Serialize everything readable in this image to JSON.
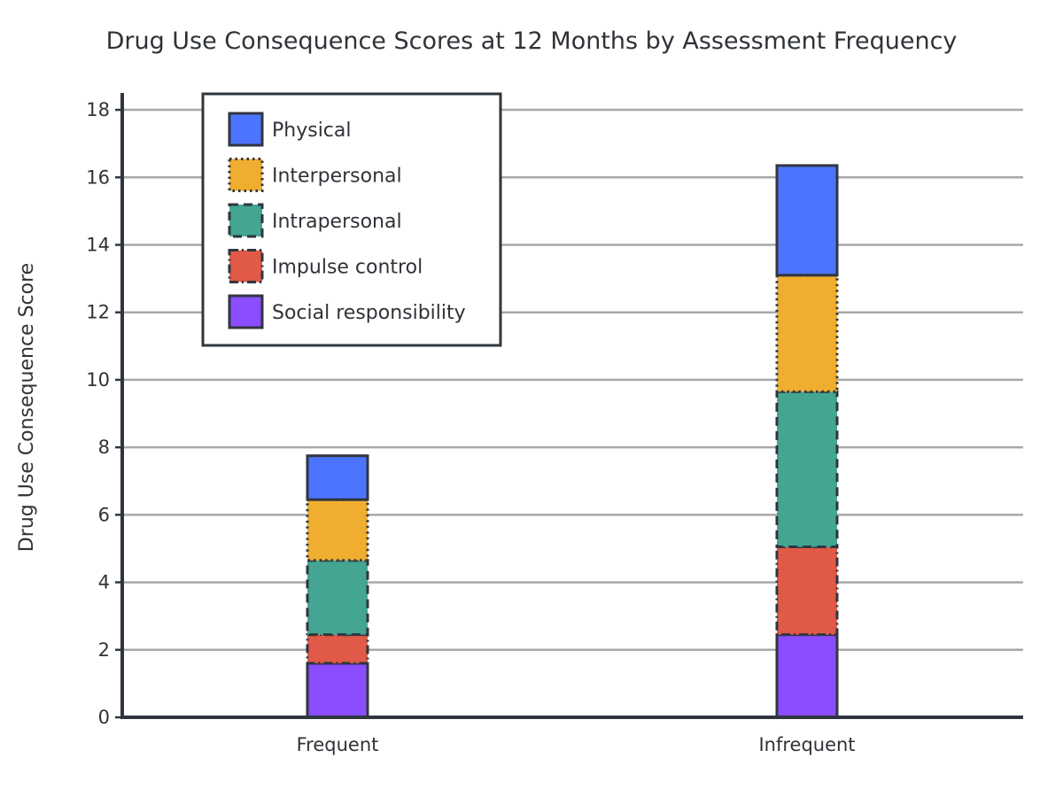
{
  "chart_data": {
    "type": "bar",
    "stacked": true,
    "title": "Drug Use Consequence Scores at 12 Months by Assessment Frequency",
    "xlabel": "",
    "ylabel": "Drug Use Consequence Score",
    "ylim": [
      0,
      18.5
    ],
    "yticks": [
      0,
      2,
      4,
      6,
      8,
      10,
      12,
      14,
      16,
      18
    ],
    "categories": [
      "Frequent",
      "Infrequent"
    ],
    "grid": true,
    "legend_position": "top-left",
    "series": [
      {
        "name": "Social responsibility",
        "values": [
          1.6,
          2.45
        ],
        "color": "#8a4dff",
        "border": "solid"
      },
      {
        "name": "Impulse control",
        "values": [
          0.85,
          2.6
        ],
        "color": "#e05a47",
        "border": "dashdot"
      },
      {
        "name": "Intrapersonal",
        "values": [
          2.2,
          4.6
        ],
        "color": "#43a592",
        "border": "dashed"
      },
      {
        "name": "Interpersonal",
        "values": [
          1.8,
          3.45
        ],
        "color": "#efae2f",
        "border": "dotted"
      },
      {
        "name": "Physical",
        "values": [
          1.3,
          3.25
        ],
        "color": "#4d74ff",
        "border": "solid"
      }
    ]
  }
}
